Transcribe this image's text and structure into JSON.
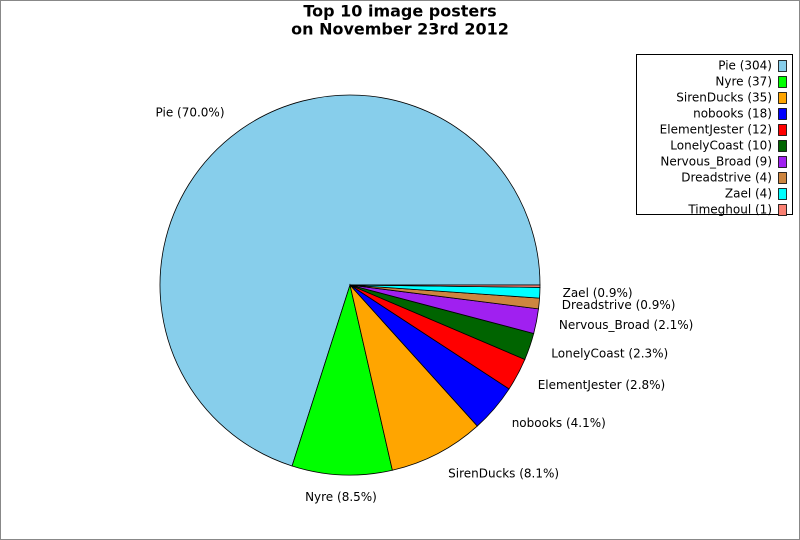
{
  "chart_data": {
    "type": "pie",
    "title": [
      "Top 10 image posters",
      "on November 23rd 2012"
    ],
    "legend": [
      "Pie (304)",
      "Nyre (37)",
      "SirenDucks (35)",
      "nobooks (18)",
      "ElementJester (12)",
      "LonelyCoast (10)",
      "Nervous_Broad (9)",
      "Dreadstrive (4)",
      "Zael (4)",
      "Timeghoul (1)"
    ],
    "labels": [
      "Pie (70.0%)",
      "Nyre (8.5%)",
      "SirenDucks (8.1%)",
      "nobooks (4.1%)",
      "ElementJester (2.8%)",
      "LonelyCoast (2.3%)",
      "Nervous_Broad (2.1%)",
      "Dreadstrive (0.9%)",
      "Zael (0.9%)",
      null
    ],
    "values": [
      70.0,
      8.5,
      8.1,
      4.1,
      2.8,
      2.3,
      2.1,
      0.9,
      0.9,
      0.2
    ],
    "colors": [
      "#87ceeb",
      "#00ff00",
      "#ffa500",
      "#0000ff",
      "#ff0000",
      "#006400",
      "#a020f0",
      "#cd853f",
      "#00ffff",
      "#fa8072"
    ],
    "legend_position": "upper right"
  }
}
